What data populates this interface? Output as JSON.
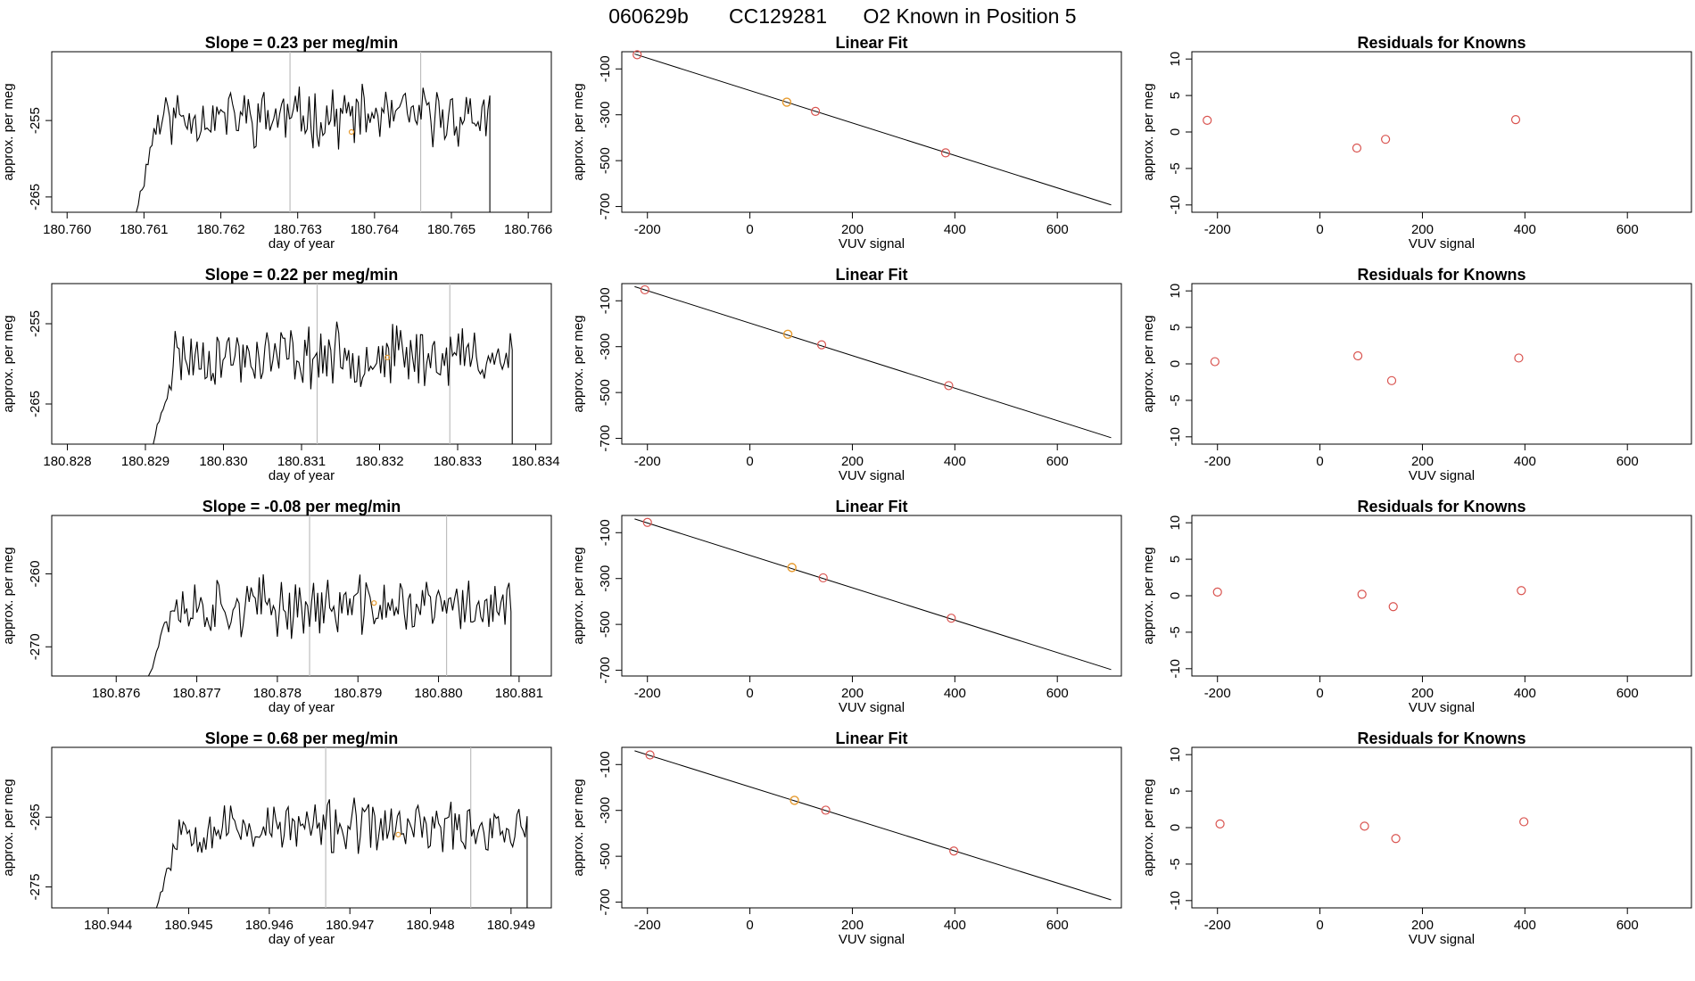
{
  "header": {
    "sample_id": "060629b",
    "tank_id": "CC129281",
    "position_text": "O2 Known in Position  5"
  },
  "colors": {
    "trace": "#000000",
    "axis": "#000000",
    "vline": "#bebebe",
    "known_point": "#d9534f",
    "highlight_point": "#e69a2e"
  },
  "chart_data": [
    {
      "type": "line",
      "panel": "time-series",
      "row": 1,
      "title": "Slope =  0.23  per meg/min",
      "xlabel": "day of year",
      "ylabel": "approx. per meg",
      "xlim": [
        180.7598,
        180.7663
      ],
      "ylim": [
        -267,
        -246
      ],
      "xticks": [
        180.76,
        180.761,
        180.762,
        180.763,
        180.764,
        180.765,
        180.766
      ],
      "xtick_labels": [
        "180.760",
        "180.761",
        "180.762",
        "180.763",
        "180.764",
        "180.765",
        "180.766"
      ],
      "yticks": [
        -255,
        -265
      ],
      "ytick_labels": [
        "-255",
        "-265"
      ],
      "vlines": [
        180.7629,
        180.7646
      ],
      "trace_range": [
        180.7609,
        180.7655
      ],
      "trace_level": -254.5,
      "trace_amp": 3.0,
      "highlight": {
        "x": 180.7637,
        "y": -256.5
      },
      "seed": 11
    },
    {
      "type": "scatter",
      "panel": "linear-fit",
      "row": 1,
      "title": "Linear Fit",
      "xlabel": "VUV signal",
      "ylabel": "approx. per meg",
      "xlim": [
        -250,
        725
      ],
      "ylim": [
        -725,
        -25
      ],
      "xticks": [
        -200,
        0,
        200,
        400,
        600
      ],
      "xtick_labels": [
        "-200",
        "0",
        "200",
        "400",
        "600"
      ],
      "yticks": [
        -100,
        -300,
        -500,
        -700
      ],
      "ytick_labels": [
        "-100",
        "-300",
        "-500",
        "-700"
      ],
      "fit_line": {
        "x": [
          -225,
          705
        ],
        "y": [
          -35,
          -693
        ]
      },
      "points": [
        {
          "x": -220,
          "y": -38
        },
        {
          "x": 128,
          "y": -285
        },
        {
          "x": 382,
          "y": -466
        }
      ],
      "highlight": {
        "x": 72,
        "y": -245
      }
    },
    {
      "type": "scatter",
      "panel": "residuals",
      "row": 1,
      "title": "Residuals for Knowns",
      "xlabel": "VUV signal",
      "ylabel": "approx. per meg",
      "xlim": [
        -250,
        725
      ],
      "ylim": [
        -11,
        11
      ],
      "xticks": [
        -200,
        0,
        200,
        400,
        600
      ],
      "xtick_labels": [
        "-200",
        "0",
        "200",
        "400",
        "600"
      ],
      "yticks": [
        10,
        5,
        0,
        -5,
        -10
      ],
      "ytick_labels": [
        "10",
        "5",
        "0",
        "-5",
        "-10"
      ],
      "points": [
        {
          "x": -220,
          "y": 1.6
        },
        {
          "x": 72,
          "y": -2.2
        },
        {
          "x": 128,
          "y": -1.0
        },
        {
          "x": 382,
          "y": 1.7
        }
      ]
    },
    {
      "type": "line",
      "panel": "time-series",
      "row": 2,
      "title": "Slope =  0.22  per meg/min",
      "xlabel": "day of year",
      "ylabel": "approx. per meg",
      "xlim": [
        180.8278,
        180.8342
      ],
      "ylim": [
        -270,
        -250
      ],
      "xticks": [
        180.828,
        180.829,
        180.83,
        180.831,
        180.832,
        180.833,
        180.834
      ],
      "xtick_labels": [
        "180.828",
        "180.829",
        "180.830",
        "180.831",
        "180.832",
        "180.833",
        "180.834"
      ],
      "yticks": [
        -255,
        -265
      ],
      "ytick_labels": [
        "-255",
        "-265"
      ],
      "vlines": [
        180.8312,
        180.8329
      ],
      "trace_range": [
        180.8291,
        180.8337
      ],
      "trace_level": -259.0,
      "trace_amp": 3.0,
      "highlight": {
        "x": 180.8321,
        "y": -259.2
      },
      "seed": 23
    },
    {
      "type": "scatter",
      "panel": "linear-fit",
      "row": 2,
      "title": "Linear Fit",
      "xlabel": "VUV signal",
      "ylabel": "approx. per meg",
      "xlim": [
        -250,
        725
      ],
      "ylim": [
        -725,
        -25
      ],
      "xticks": [
        -200,
        0,
        200,
        400,
        600
      ],
      "xtick_labels": [
        "-200",
        "0",
        "200",
        "400",
        "600"
      ],
      "yticks": [
        -100,
        -300,
        -500,
        -700
      ],
      "ytick_labels": [
        "-100",
        "-300",
        "-500",
        "-700"
      ],
      "fit_line": {
        "x": [
          -225,
          705
        ],
        "y": [
          -38,
          -697
        ]
      },
      "points": [
        {
          "x": -205,
          "y": -52
        },
        {
          "x": 140,
          "y": -292
        },
        {
          "x": 388,
          "y": -470
        }
      ],
      "highlight": {
        "x": 74,
        "y": -246
      }
    },
    {
      "type": "scatter",
      "panel": "residuals",
      "row": 2,
      "title": "Residuals for Knowns",
      "xlabel": "VUV signal",
      "ylabel": "approx. per meg",
      "xlim": [
        -250,
        725
      ],
      "ylim": [
        -11,
        11
      ],
      "xticks": [
        -200,
        0,
        200,
        400,
        600
      ],
      "xtick_labels": [
        "-200",
        "0",
        "200",
        "400",
        "600"
      ],
      "yticks": [
        10,
        5,
        0,
        -5,
        -10
      ],
      "ytick_labels": [
        "10",
        "5",
        "0",
        "-5",
        "-10"
      ],
      "points": [
        {
          "x": -205,
          "y": 0.3
        },
        {
          "x": 74,
          "y": 1.1
        },
        {
          "x": 140,
          "y": -2.3
        },
        {
          "x": 388,
          "y": 0.8
        }
      ]
    },
    {
      "type": "line",
      "panel": "time-series",
      "row": 3,
      "title": "Slope =  -0.08  per meg/min",
      "xlabel": "day of year",
      "ylabel": "approx. per meg",
      "xlim": [
        180.8752,
        180.8814
      ],
      "ylim": [
        -274,
        -252
      ],
      "xticks": [
        180.876,
        180.877,
        180.878,
        180.879,
        180.88,
        180.881
      ],
      "xtick_labels": [
        "180.876",
        "180.877",
        "180.878",
        "180.879",
        "180.880",
        "180.881"
      ],
      "yticks": [
        -260,
        -270
      ],
      "ytick_labels": [
        "-260",
        "-270"
      ],
      "vlines": [
        180.8784,
        180.8801
      ],
      "trace_range": [
        180.8764,
        180.8809
      ],
      "trace_level": -264.5,
      "trace_amp": 3.2,
      "highlight": {
        "x": 180.8792,
        "y": -264.0
      },
      "seed": 37
    },
    {
      "type": "scatter",
      "panel": "linear-fit",
      "row": 3,
      "title": "Linear Fit",
      "xlabel": "VUV signal",
      "ylabel": "approx. per meg",
      "xlim": [
        -250,
        725
      ],
      "ylim": [
        -725,
        -25
      ],
      "xticks": [
        -200,
        0,
        200,
        400,
        600
      ],
      "xtick_labels": [
        "-200",
        "0",
        "200",
        "400",
        "600"
      ],
      "yticks": [
        -100,
        -300,
        -500,
        -700
      ],
      "ytick_labels": [
        "-100",
        "-300",
        "-500",
        "-700"
      ],
      "fit_line": {
        "x": [
          -225,
          705
        ],
        "y": [
          -40,
          -697
        ]
      },
      "points": [
        {
          "x": -200,
          "y": -55
        },
        {
          "x": 143,
          "y": -297
        },
        {
          "x": 393,
          "y": -473
        }
      ],
      "highlight": {
        "x": 82,
        "y": -252
      }
    },
    {
      "type": "scatter",
      "panel": "residuals",
      "row": 3,
      "title": "Residuals for Knowns",
      "xlabel": "VUV signal",
      "ylabel": "approx. per meg",
      "xlim": [
        -250,
        725
      ],
      "ylim": [
        -11,
        11
      ],
      "xticks": [
        -200,
        0,
        200,
        400,
        600
      ],
      "xtick_labels": [
        "-200",
        "0",
        "200",
        "400",
        "600"
      ],
      "yticks": [
        10,
        5,
        0,
        -5,
        -10
      ],
      "ytick_labels": [
        "10",
        "5",
        "0",
        "-5",
        "-10"
      ],
      "points": [
        {
          "x": -200,
          "y": 0.5
        },
        {
          "x": 82,
          "y": 0.2
        },
        {
          "x": 143,
          "y": -1.5
        },
        {
          "x": 393,
          "y": 0.7
        }
      ]
    },
    {
      "type": "line",
      "panel": "time-series",
      "row": 4,
      "title": "Slope =  0.68  per meg/min",
      "xlabel": "day of year",
      "ylabel": "approx. per meg",
      "xlim": [
        180.9433,
        180.9495
      ],
      "ylim": [
        -278,
        -255
      ],
      "xticks": [
        180.944,
        180.945,
        180.946,
        180.947,
        180.948,
        180.949
      ],
      "xtick_labels": [
        "180.944",
        "180.945",
        "180.946",
        "180.947",
        "180.948",
        "180.949"
      ],
      "yticks": [
        -265,
        -275
      ],
      "ytick_labels": [
        "-265",
        "-275"
      ],
      "vlines": [
        180.9467,
        180.9485
      ],
      "trace_range": [
        180.9446,
        180.9492
      ],
      "trace_level": -266.5,
      "trace_amp": 3.0,
      "highlight": {
        "x": 180.9476,
        "y": -267.5
      },
      "seed": 53
    },
    {
      "type": "scatter",
      "panel": "linear-fit",
      "row": 4,
      "title": "Linear Fit",
      "xlabel": "VUV signal",
      "ylabel": "approx. per meg",
      "xlim": [
        -250,
        725
      ],
      "ylim": [
        -725,
        -25
      ],
      "xticks": [
        -200,
        0,
        200,
        400,
        600
      ],
      "xtick_labels": [
        "-200",
        "0",
        "200",
        "400",
        "600"
      ],
      "yticks": [
        -100,
        -300,
        -500,
        -700
      ],
      "ytick_labels": [
        "-100",
        "-300",
        "-500",
        "-700"
      ],
      "fit_line": {
        "x": [
          -225,
          705
        ],
        "y": [
          -40,
          -690
        ]
      },
      "points": [
        {
          "x": -195,
          "y": -58
        },
        {
          "x": 148,
          "y": -299
        },
        {
          "x": 398,
          "y": -477
        }
      ],
      "highlight": {
        "x": 87,
        "y": -256
      }
    },
    {
      "type": "scatter",
      "panel": "residuals",
      "row": 4,
      "title": "Residuals for Knowns",
      "xlabel": "VUV signal",
      "ylabel": "approx. per meg",
      "xlim": [
        -250,
        725
      ],
      "ylim": [
        -11,
        11
      ],
      "xticks": [
        -200,
        0,
        200,
        400,
        600
      ],
      "xtick_labels": [
        "-200",
        "0",
        "200",
        "400",
        "600"
      ],
      "yticks": [
        10,
        5,
        0,
        -5,
        -10
      ],
      "ytick_labels": [
        "10",
        "5",
        "0",
        "-5",
        "-10"
      ],
      "points": [
        {
          "x": -195,
          "y": 0.5
        },
        {
          "x": 87,
          "y": 0.2
        },
        {
          "x": 148,
          "y": -1.5
        },
        {
          "x": 398,
          "y": 0.8
        }
      ]
    }
  ]
}
